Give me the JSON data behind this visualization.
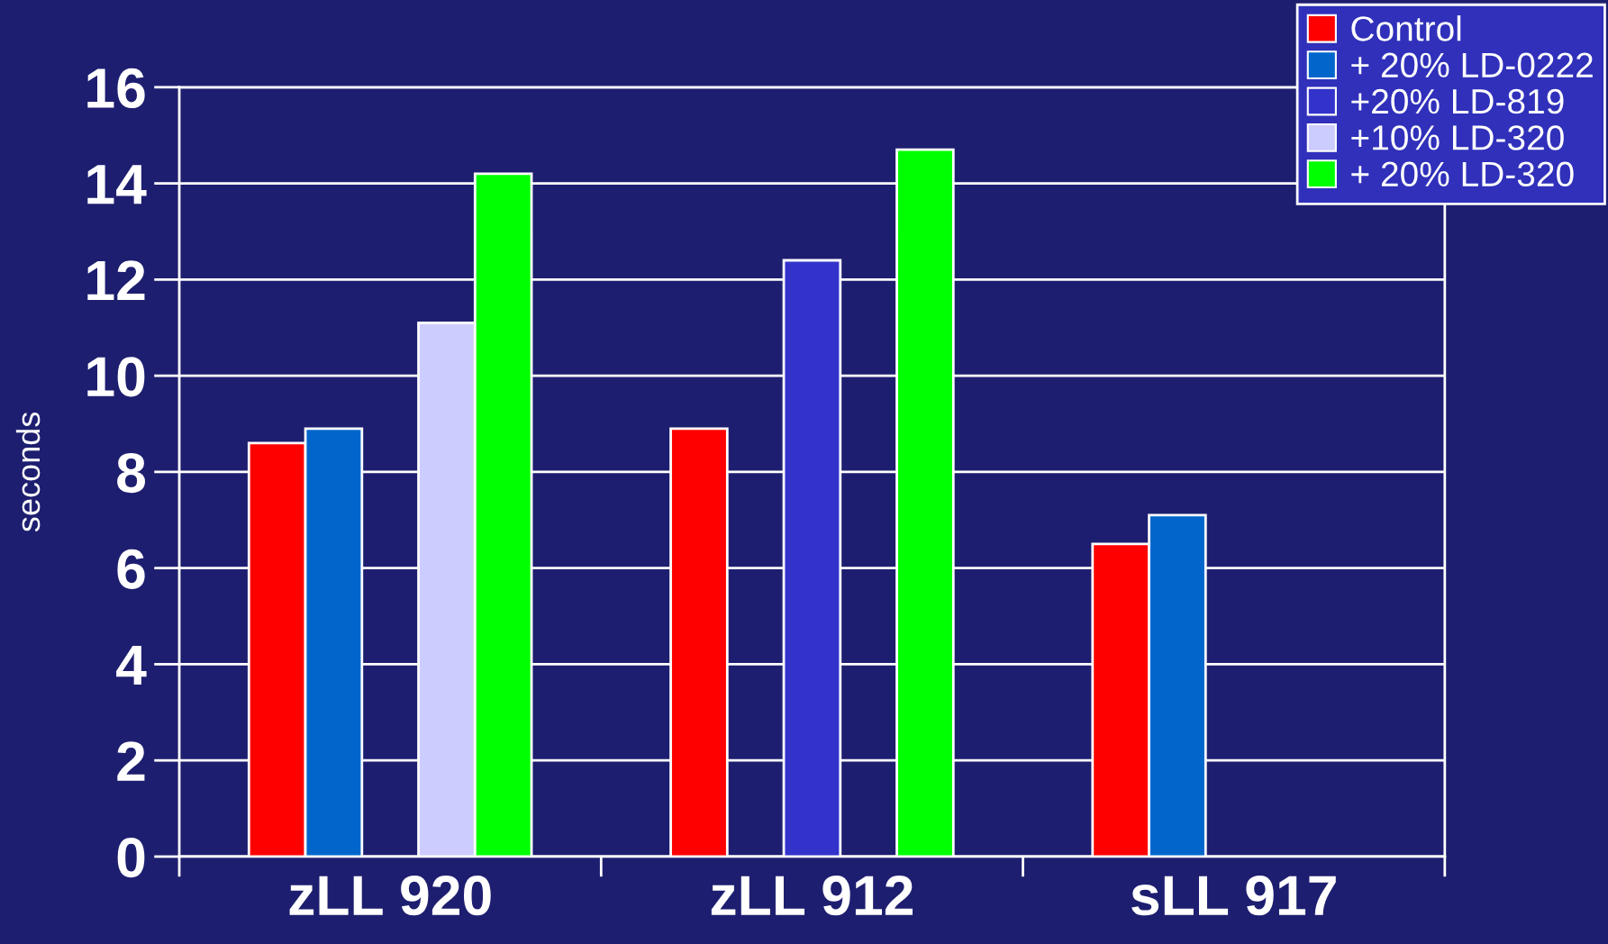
{
  "chart_data": {
    "type": "bar",
    "ylabel": "seconds",
    "categories": [
      "zLL 920",
      "zLL 912",
      "sLL 917"
    ],
    "series": [
      {
        "name": "Control",
        "color": "#ff0000",
        "values": [
          8.6,
          8.9,
          6.5
        ]
      },
      {
        "name": "+ 20% LD-0222",
        "color": "#0066cc",
        "values": [
          8.9,
          null,
          7.1
        ]
      },
      {
        "name": "+20% LD-819",
        "color": "#3333cc",
        "values": [
          null,
          12.4,
          null
        ]
      },
      {
        "name": "+10% LD-320",
        "color": "#ccccff",
        "values": [
          11.1,
          null,
          null
        ]
      },
      {
        "name": "+ 20% LD-320",
        "color": "#00ff00",
        "values": [
          14.2,
          14.7,
          null
        ]
      }
    ],
    "ylim": [
      0,
      16
    ],
    "yticks": [
      0,
      2,
      4,
      6,
      8,
      10,
      12,
      14,
      16
    ],
    "grid": "y",
    "legend": "top right"
  }
}
